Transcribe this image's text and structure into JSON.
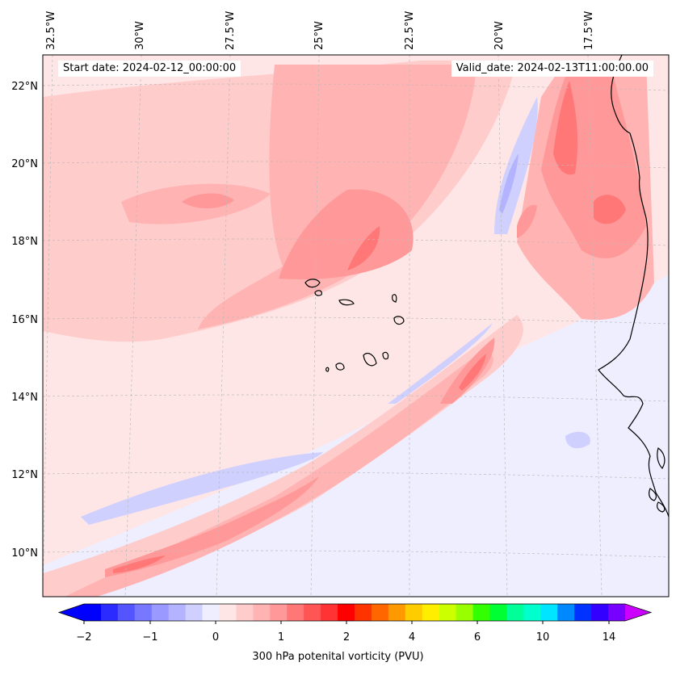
{
  "header": {
    "start_date": "Start date: 2024-02-12_00:00:00",
    "valid_date": "Valid_date: 2024-02-13T11:00:00.00"
  },
  "lon_labels": [
    "32.5°W",
    "30°W",
    "27.5°W",
    "25°W",
    "22.5°W",
    "20°W",
    "17.5°W"
  ],
  "lat_labels": [
    "22°N",
    "20°N",
    "18°N",
    "16°N",
    "14°N",
    "12°N",
    "10°N"
  ],
  "colorbar": {
    "title": "300 hPa potenital vorticity (PVU)",
    "tick_labels": [
      "−2",
      "−1",
      "0",
      "1",
      "2",
      "4",
      "6",
      "10",
      "14"
    ],
    "colors": [
      "#0000ff",
      "#2b2bff",
      "#5555ff",
      "#7777ff",
      "#9999ff",
      "#b3b3ff",
      "#d0d0ff",
      "#eeeeff",
      "#ffe6e6",
      "#ffcccc",
      "#ffb3b3",
      "#ff9999",
      "#ff7777",
      "#ff5555",
      "#ff3333",
      "#ff0000",
      "#ff3300",
      "#ff6600",
      "#ff9900",
      "#ffcc00",
      "#ffee00",
      "#ccff00",
      "#99ff00",
      "#33ff00",
      "#00ff33",
      "#00ff99",
      "#00ffcc",
      "#00e5ff",
      "#0088ff",
      "#0033ff",
      "#3300ff",
      "#7700ff"
    ],
    "under_color": "#0000ff",
    "over_color": "#cc00ff"
  },
  "fill_colors": {
    "background": "#ffe6e6",
    "weak_pos": "#ffcccc",
    "mid_pos": "#ffb3b3",
    "strong_pos": "#ff9999",
    "max_pos": "#ff7777",
    "weak_neg": "#eeeeff",
    "mid_neg": "#d0d0ff",
    "strong_neg": "#b3b3ff",
    "coast": "#000000"
  }
}
